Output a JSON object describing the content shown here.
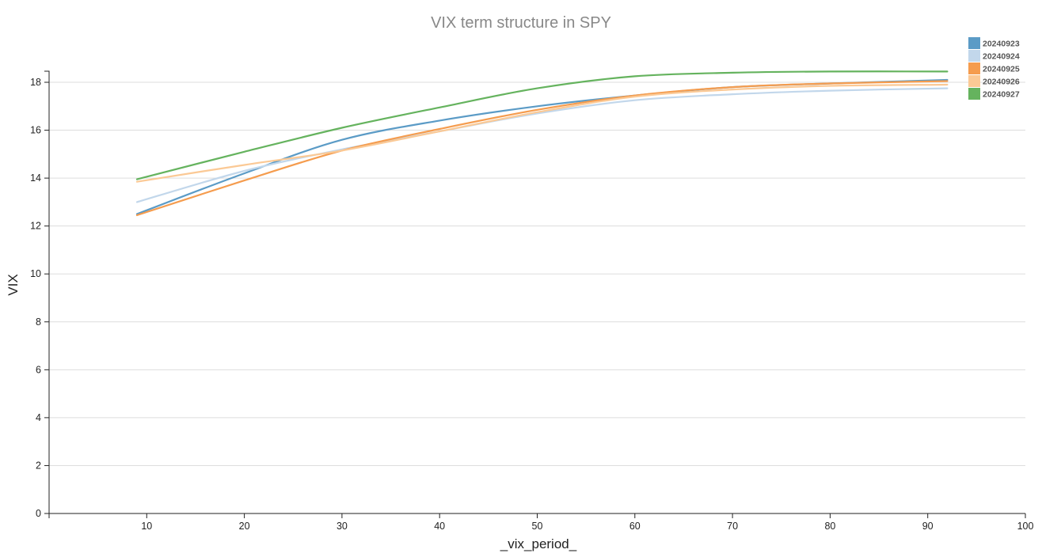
{
  "chart_data": {
    "type": "line",
    "title": "VIX term structure in SPY",
    "xlabel": "_vix_period_",
    "ylabel": "VIX",
    "xlim": [
      0,
      100
    ],
    "ylim": [
      0,
      19
    ],
    "xticks": [
      "10",
      "20",
      "30",
      "40",
      "50",
      "60",
      "70",
      "80",
      "90",
      "100"
    ],
    "yticks": [
      "0",
      "2",
      "4",
      "6",
      "8",
      "10",
      "12",
      "14",
      "16",
      "18"
    ],
    "grid": "horizontal",
    "legend_position": "top-right",
    "series": [
      {
        "name": "20240923",
        "color": "#5b9bc6",
        "x": [
          9,
          20,
          30,
          40,
          50,
          60,
          70,
          80,
          92
        ],
        "y": [
          12.5,
          14.2,
          15.6,
          16.4,
          17.0,
          17.45,
          17.8,
          17.95,
          18.1
        ]
      },
      {
        "name": "20240924",
        "color": "#c2d7eb",
        "x": [
          9,
          20,
          30,
          40,
          50,
          60,
          70,
          80,
          92
        ],
        "y": [
          13.0,
          14.3,
          15.2,
          15.95,
          16.7,
          17.25,
          17.5,
          17.65,
          17.75
        ]
      },
      {
        "name": "20240925",
        "color": "#f59c4e",
        "x": [
          9,
          20,
          30,
          40,
          50,
          60,
          70,
          80,
          92
        ],
        "y": [
          12.45,
          13.9,
          15.15,
          16.05,
          16.85,
          17.45,
          17.8,
          17.95,
          18.05
        ]
      },
      {
        "name": "20240926",
        "color": "#fbc995",
        "x": [
          9,
          20,
          30,
          40,
          50,
          60,
          70,
          80,
          92
        ],
        "y": [
          13.85,
          14.55,
          15.15,
          15.95,
          16.75,
          17.4,
          17.7,
          17.85,
          17.9
        ]
      },
      {
        "name": "20240927",
        "color": "#65b35e",
        "x": [
          9,
          20,
          30,
          40,
          50,
          60,
          70,
          80,
          92
        ],
        "y": [
          13.95,
          15.1,
          16.1,
          16.95,
          17.75,
          18.25,
          18.4,
          18.45,
          18.45
        ]
      }
    ]
  }
}
